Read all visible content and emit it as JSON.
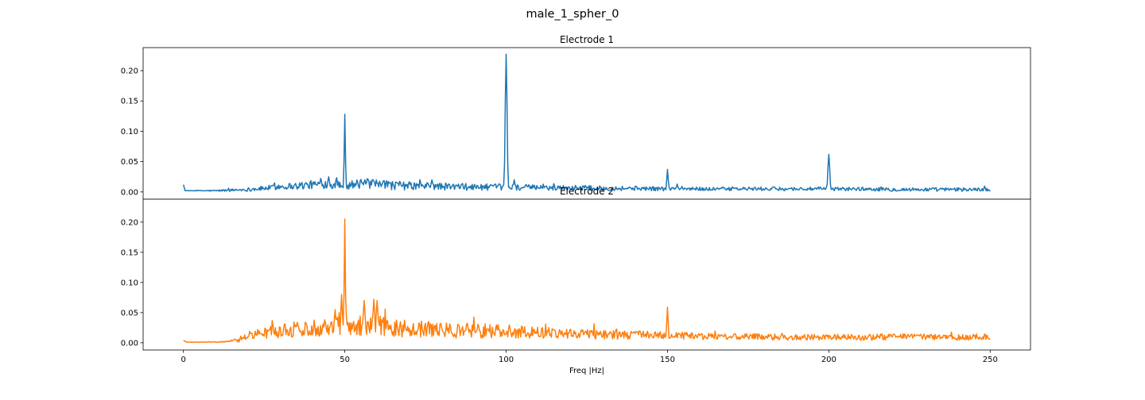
{
  "chart_data": {
    "type": "line",
    "figure_title": "male_1_spher_0",
    "xlabel": "Freq |Hz|",
    "xlim": [
      -12.5,
      262.5
    ],
    "x_ticks": [
      0,
      50,
      100,
      150,
      200,
      250
    ],
    "subplots": [
      {
        "title": "Electrode 1",
        "color": "#1f77b4",
        "ylim": [
          -0.012,
          0.238
        ],
        "y_ticks": [
          "0.00",
          "0.05",
          "0.10",
          "0.15",
          "0.20"
        ],
        "baseline": [
          [
            0,
            0.012
          ],
          [
            0.5,
            0.002
          ],
          [
            5,
            0.002
          ],
          [
            10,
            0.002
          ],
          [
            15,
            0.003
          ],
          [
            20,
            0.004
          ],
          [
            25,
            0.006
          ],
          [
            30,
            0.009
          ],
          [
            35,
            0.01
          ],
          [
            40,
            0.012
          ],
          [
            45,
            0.013
          ],
          [
            49,
            0.012
          ],
          [
            51,
            0.012
          ],
          [
            55,
            0.013
          ],
          [
            60,
            0.012
          ],
          [
            70,
            0.01
          ],
          [
            80,
            0.009
          ],
          [
            90,
            0.008
          ],
          [
            100,
            0.008
          ],
          [
            110,
            0.007
          ],
          [
            120,
            0.007
          ],
          [
            130,
            0.006
          ],
          [
            140,
            0.006
          ],
          [
            150,
            0.005
          ],
          [
            160,
            0.005
          ],
          [
            170,
            0.005
          ],
          [
            180,
            0.005
          ],
          [
            190,
            0.005
          ],
          [
            200,
            0.005
          ],
          [
            210,
            0.005
          ],
          [
            220,
            0.004
          ],
          [
            230,
            0.004
          ],
          [
            240,
            0.004
          ],
          [
            250,
            0.004
          ]
        ],
        "noise": [
          [
            0,
            0.0
          ],
          [
            15,
            0.002
          ],
          [
            25,
            0.004
          ],
          [
            40,
            0.007
          ],
          [
            60,
            0.008
          ],
          [
            80,
            0.006
          ],
          [
            100,
            0.005
          ],
          [
            130,
            0.004
          ],
          [
            160,
            0.003
          ],
          [
            250,
            0.003
          ]
        ],
        "peaks": [
          {
            "freq": 45,
            "value": 0.025,
            "width": 0.3
          },
          {
            "freq": 50,
            "value": 0.128,
            "width": 0.18
          },
          {
            "freq": 57,
            "value": 0.022,
            "width": 0.3
          },
          {
            "freq": 77,
            "value": 0.02,
            "width": 0.3
          },
          {
            "freq": 100,
            "value": 0.227,
            "width": 0.28
          },
          {
            "freq": 102.5,
            "value": 0.02,
            "width": 0.25
          },
          {
            "freq": 150,
            "value": 0.037,
            "width": 0.22
          },
          {
            "freq": 153,
            "value": 0.013,
            "width": 0.25
          },
          {
            "freq": 200,
            "value": 0.062,
            "width": 0.28
          }
        ]
      },
      {
        "title": "Electrode 2",
        "color": "#ff7f0e",
        "ylim": [
          -0.012,
          0.238
        ],
        "y_ticks": [
          "0.00",
          "0.05",
          "0.10",
          "0.15",
          "0.20"
        ],
        "baseline": [
          [
            0,
            0.004
          ],
          [
            1,
            0.001
          ],
          [
            5,
            0.001
          ],
          [
            10,
            0.001
          ],
          [
            14,
            0.002
          ],
          [
            17,
            0.005
          ],
          [
            20,
            0.012
          ],
          [
            25,
            0.016
          ],
          [
            30,
            0.02
          ],
          [
            35,
            0.022
          ],
          [
            40,
            0.025
          ],
          [
            45,
            0.028
          ],
          [
            48,
            0.03
          ],
          [
            52,
            0.03
          ],
          [
            55,
            0.03
          ],
          [
            60,
            0.028
          ],
          [
            65,
            0.026
          ],
          [
            70,
            0.023
          ],
          [
            80,
            0.021
          ],
          [
            90,
            0.02
          ],
          [
            100,
            0.019
          ],
          [
            110,
            0.017
          ],
          [
            120,
            0.016
          ],
          [
            130,
            0.014
          ],
          [
            140,
            0.013
          ],
          [
            150,
            0.012
          ],
          [
            160,
            0.011
          ],
          [
            170,
            0.01
          ],
          [
            180,
            0.01
          ],
          [
            190,
            0.009
          ],
          [
            200,
            0.009
          ],
          [
            210,
            0.009
          ],
          [
            220,
            0.01
          ],
          [
            230,
            0.01
          ],
          [
            240,
            0.009
          ],
          [
            250,
            0.01
          ]
        ],
        "noise": [
          [
            0,
            0.0
          ],
          [
            14,
            0.001
          ],
          [
            18,
            0.005
          ],
          [
            25,
            0.01
          ],
          [
            35,
            0.013
          ],
          [
            45,
            0.016
          ],
          [
            55,
            0.018
          ],
          [
            60,
            0.018
          ],
          [
            70,
            0.014
          ],
          [
            90,
            0.012
          ],
          [
            110,
            0.01
          ],
          [
            130,
            0.008
          ],
          [
            150,
            0.006
          ],
          [
            180,
            0.005
          ],
          [
            250,
            0.005
          ]
        ],
        "peaks": [
          {
            "freq": 47,
            "value": 0.055,
            "width": 0.3
          },
          {
            "freq": 49,
            "value": 0.08,
            "width": 0.25
          },
          {
            "freq": 50,
            "value": 0.205,
            "width": 0.18
          },
          {
            "freq": 56,
            "value": 0.07,
            "width": 0.3
          },
          {
            "freq": 59,
            "value": 0.072,
            "width": 0.3
          },
          {
            "freq": 60,
            "value": 0.07,
            "width": 0.3
          },
          {
            "freq": 150,
            "value": 0.059,
            "width": 0.22
          }
        ]
      }
    ]
  }
}
